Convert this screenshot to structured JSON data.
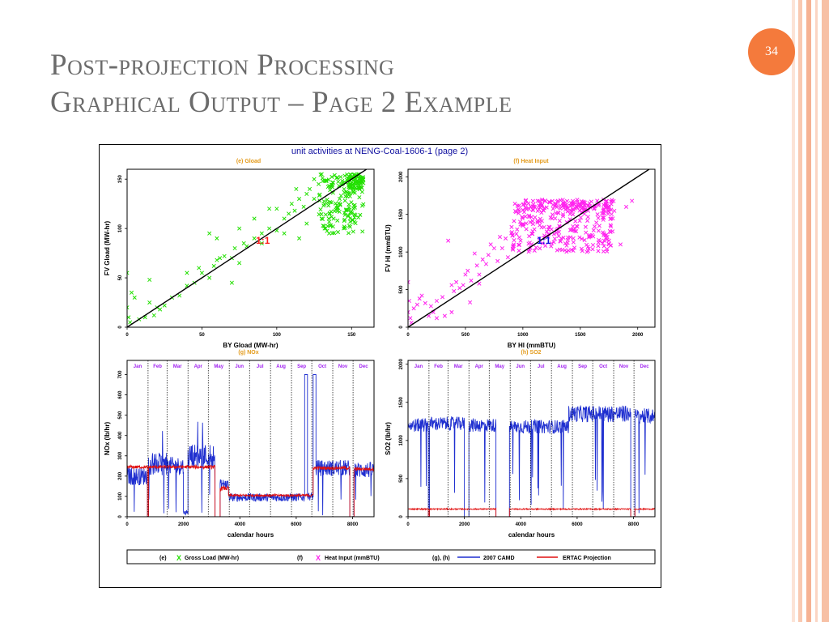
{
  "slide": {
    "title_line1": "Post-projection Processing",
    "title_line2": "Graphical Output – Page 2 Example",
    "page_number": "34",
    "colors": {
      "title": "#6b6b6b",
      "badge": "#f47a3c",
      "stripe_light": "#fbd9c9",
      "stripe_mid": "#f6b89a"
    }
  },
  "figure": {
    "main_title": "unit activities at  NENG-Coal-1606-1  (page 2)",
    "subtitle_color": "#e39a1a",
    "legend": {
      "e_tag": "(e)",
      "e_marker": "X",
      "e_label": "Gross Load (MW-hr)",
      "f_tag": "(f)",
      "f_marker": "X",
      "f_label": "Heat Input (mmBTU)",
      "gh_tag": "(g), (h)",
      "camd_label": "2007 CAMD",
      "ertac_label": "ERTAC Projection",
      "colors": {
        "gload": "#22e000",
        "heat": "#ff22ee",
        "camd": "#1f2fd0",
        "ertac": "#e01010"
      }
    }
  },
  "chart_data": [
    {
      "id": "e",
      "type": "scatter",
      "title": "(e) Gload",
      "xlabel": "BY Gload (MW-hr)",
      "ylabel": "FV Gload (MW-hr)",
      "xlim": [
        0,
        165
      ],
      "ylim": [
        0,
        160
      ],
      "xticks": [
        0,
        50,
        100,
        150
      ],
      "yticks": [
        0,
        50,
        100,
        150
      ],
      "annotation": "1:1",
      "annotation_color": "#ff2020",
      "series": [
        {
          "marker_color": "#22e000",
          "points": [
            [
              0,
              55
            ],
            [
              0,
              20
            ],
            [
              1,
              10
            ],
            [
              2,
              5
            ],
            [
              3,
              35
            ],
            [
              5,
              30
            ],
            [
              8,
              8
            ],
            [
              12,
              10
            ],
            [
              15,
              48
            ],
            [
              18,
              12
            ],
            [
              20,
              20
            ],
            [
              25,
              22
            ],
            [
              30,
              30
            ],
            [
              35,
              32
            ],
            [
              40,
              42
            ],
            [
              45,
              45
            ],
            [
              50,
              55
            ],
            [
              55,
              50
            ],
            [
              58,
              62
            ],
            [
              60,
              68
            ],
            [
              62,
              70
            ],
            [
              65,
              72
            ],
            [
              70,
              70
            ],
            [
              72,
              80
            ],
            [
              75,
              65
            ],
            [
              78,
              85
            ],
            [
              80,
              82
            ],
            [
              85,
              90
            ],
            [
              90,
              95
            ],
            [
              95,
              100
            ],
            [
              100,
              98
            ],
            [
              105,
              110
            ],
            [
              108,
              115
            ],
            [
              110,
              125
            ],
            [
              112,
              118
            ],
            [
              115,
              130
            ],
            [
              118,
              122
            ],
            [
              120,
              105
            ],
            [
              122,
              140
            ],
            [
              125,
              150
            ],
            [
              128,
              145
            ],
            [
              130,
              155
            ],
            [
              132,
              100
            ],
            [
              135,
              95
            ],
            [
              138,
              110
            ],
            [
              140,
              120
            ],
            [
              142,
              130
            ],
            [
              145,
              140
            ],
            [
              150,
              150
            ],
            [
              155,
              155
            ],
            [
              60,
              90
            ],
            [
              70,
              45
            ],
            [
              85,
              110
            ],
            [
              105,
              95
            ],
            [
              113,
              140
            ],
            [
              120,
              135
            ],
            [
              130,
              110
            ],
            [
              95,
              120
            ],
            [
              55,
              95
            ],
            [
              75,
              100
            ],
            [
              90,
              85
            ],
            [
              100,
              120
            ],
            [
              115,
              90
            ],
            [
              125,
              130
            ],
            [
              40,
              55
            ],
            [
              48,
              60
            ],
            [
              15,
              25
            ],
            [
              22,
              18
            ]
          ],
          "clusters": [
            {
              "x": [
                128,
                158
              ],
              "y": [
                95,
                155
              ],
              "density": 150
            },
            {
              "x": [
                148,
                158
              ],
              "y": [
                140,
                155
              ],
              "density": 60
            }
          ]
        }
      ],
      "reference_line": "1:1"
    },
    {
      "id": "f",
      "type": "scatter",
      "title": "(f) Heat Input",
      "xlabel": "BY HI (mmBTU)",
      "ylabel": "FV HI (mmBTU)",
      "xlim": [
        0,
        2150
      ],
      "ylim": [
        0,
        2100
      ],
      "xticks": [
        0,
        500,
        1000,
        1500,
        2000
      ],
      "yticks": [
        0,
        500,
        1000,
        1500,
        2000
      ],
      "annotation": "1:1",
      "annotation_color": "#1010e0",
      "series": [
        {
          "marker_color": "#ff22ee",
          "points": [
            [
              0,
              600
            ],
            [
              0,
              200
            ],
            [
              10,
              350
            ],
            [
              20,
              120
            ],
            [
              30,
              60
            ],
            [
              50,
              250
            ],
            [
              80,
              300
            ],
            [
              100,
              380
            ],
            [
              120,
              420
            ],
            [
              150,
              320
            ],
            [
              180,
              150
            ],
            [
              200,
              280
            ],
            [
              220,
              200
            ],
            [
              250,
              350
            ],
            [
              300,
              400
            ],
            [
              320,
              150
            ],
            [
              350,
              1150
            ],
            [
              380,
              560
            ],
            [
              400,
              480
            ],
            [
              420,
              600
            ],
            [
              450,
              520
            ],
            [
              480,
              560
            ],
            [
              500,
              700
            ],
            [
              520,
              750
            ],
            [
              550,
              620
            ],
            [
              580,
              980
            ],
            [
              600,
              820
            ],
            [
              620,
              700
            ],
            [
              650,
              900
            ],
            [
              680,
              840
            ],
            [
              700,
              960
            ],
            [
              720,
              1100
            ],
            [
              750,
              1050
            ],
            [
              780,
              880
            ],
            [
              800,
              1200
            ],
            [
              820,
              1050
            ],
            [
              850,
              1180
            ],
            [
              870,
              930
            ],
            [
              900,
              1250
            ],
            [
              920,
              1100
            ],
            [
              950,
              1300
            ],
            [
              980,
              1150
            ],
            [
              1000,
              1350
            ],
            [
              1850,
              1100
            ],
            [
              1950,
              1680
            ],
            [
              1900,
              1600
            ],
            [
              1700,
              1550
            ],
            [
              1650,
              1500
            ],
            [
              540,
              330
            ],
            [
              250,
              120
            ],
            [
              380,
              200
            ],
            [
              620,
              580
            ]
          ],
          "clusters": [
            {
              "x": [
                900,
                1800
              ],
              "y": [
                1000,
                1700
              ],
              "density": 260
            },
            {
              "x": [
                1000,
                1800
              ],
              "y": [
                1550,
                1700
              ],
              "density": 90
            }
          ]
        }
      ],
      "reference_line": "1:1"
    },
    {
      "id": "g",
      "type": "line",
      "title": "(g) NOx",
      "xlabel": "calendar hours",
      "ylabel": "NOx (lb/hr)",
      "xlim": [
        0,
        8760
      ],
      "ylim": [
        0,
        770
      ],
      "xticks": [
        0,
        2000,
        4000,
        6000,
        8000
      ],
      "yticks": [
        0,
        100,
        200,
        300,
        400,
        500,
        600,
        700
      ],
      "months": [
        "Jan",
        "Feb",
        "Mar",
        "Apr",
        "May",
        "Jun",
        "Jul",
        "Aug",
        "Sep",
        "Oct",
        "Nov",
        "Dec"
      ],
      "month_color": "#a020f0",
      "series": [
        {
          "name": "2007 CAMD",
          "color": "#1f2fd0",
          "segments": [
            {
              "x": [
                0,
                720
              ],
              "mean": 200,
              "noise": 45
            },
            {
              "x": [
                720,
                760
              ],
              "mean": 0,
              "noise": 0
            },
            {
              "x": [
                760,
                1400
              ],
              "mean": 260,
              "noise": 55,
              "spike": 480
            },
            {
              "x": [
                1400,
                2000
              ],
              "mean": 250,
              "noise": 45
            },
            {
              "x": [
                2000,
                2160
              ],
              "mean": 20,
              "noise": 10
            },
            {
              "x": [
                2160,
                3120
              ],
              "mean": 300,
              "noise": 60,
              "spike": 480
            },
            {
              "x": [
                3120,
                3300
              ],
              "mean": 0,
              "noise": 0
            },
            {
              "x": [
                3300,
                3600
              ],
              "mean": 160,
              "noise": 25
            },
            {
              "x": [
                3600,
                6300
              ],
              "mean": 95,
              "noise": 20
            },
            {
              "x": [
                6300,
                6400
              ],
              "mean": 700,
              "noise": 0
            },
            {
              "x": [
                6400,
                6600
              ],
              "mean": 100,
              "noise": 20
            },
            {
              "x": [
                6600,
                6700
              ],
              "mean": 700,
              "noise": 0
            },
            {
              "x": [
                6700,
                7900
              ],
              "mean": 240,
              "noise": 40
            },
            {
              "x": [
                7900,
                8050
              ],
              "mean": 0,
              "noise": 0
            },
            {
              "x": [
                8050,
                8760
              ],
              "mean": 230,
              "noise": 40
            }
          ]
        },
        {
          "name": "ERTAC Projection",
          "color": "#e01010",
          "segments": [
            {
              "x": [
                0,
                720
              ],
              "mean": 245,
              "noise": 8
            },
            {
              "x": [
                720,
                760
              ],
              "mean": 0,
              "noise": 0
            },
            {
              "x": [
                760,
                3120
              ],
              "mean": 245,
              "noise": 8
            },
            {
              "x": [
                3120,
                3300
              ],
              "mean": 0,
              "noise": 0
            },
            {
              "x": [
                3300,
                3600
              ],
              "mean": 140,
              "noise": 10
            },
            {
              "x": [
                3600,
                6600
              ],
              "mean": 105,
              "noise": 6
            },
            {
              "x": [
                6600,
                7900
              ],
              "mean": 240,
              "noise": 8
            },
            {
              "x": [
                7900,
                8050
              ],
              "mean": 0,
              "noise": 0
            },
            {
              "x": [
                8050,
                8760
              ],
              "mean": 235,
              "noise": 8
            }
          ]
        }
      ]
    },
    {
      "id": "h",
      "type": "line",
      "title": "(h) SO2",
      "xlabel": "calendar hours",
      "ylabel": "SO2 (lb/hr)",
      "xlim": [
        0,
        8760
      ],
      "ylim": [
        0,
        2050
      ],
      "xticks": [
        0,
        2000,
        4000,
        6000,
        8000
      ],
      "yticks": [
        0,
        500,
        1000,
        1500,
        2000
      ],
      "months": [
        "Jan",
        "Feb",
        "Mar",
        "Apr",
        "May",
        "Jun",
        "Jul",
        "Aug",
        "Sep",
        "Oct",
        "Nov",
        "Dec"
      ],
      "month_color": "#a020f0",
      "series": [
        {
          "name": "2007 CAMD",
          "color": "#1f2fd0",
          "segments": [
            {
              "x": [
                0,
                720
              ],
              "mean": 1200,
              "noise": 90
            },
            {
              "x": [
                720,
                760
              ],
              "mean": 0,
              "noise": 0
            },
            {
              "x": [
                760,
                2000
              ],
              "mean": 1220,
              "noise": 90
            },
            {
              "x": [
                2000,
                2160
              ],
              "mean": 0,
              "noise": 0
            },
            {
              "x": [
                2160,
                3120
              ],
              "mean": 1200,
              "noise": 90
            },
            {
              "x": [
                3120,
                3300
              ],
              "mean": 0,
              "noise": 0
            },
            {
              "x": [
                3300,
                3600
              ],
              "mean": 0,
              "noise": 0
            },
            {
              "x": [
                3600,
                5700
              ],
              "mean": 1180,
              "noise": 90
            },
            {
              "x": [
                5700,
                7900
              ],
              "mean": 1350,
              "noise": 110
            },
            {
              "x": [
                7900,
                8050
              ],
              "mean": 0,
              "noise": 0
            },
            {
              "x": [
                8050,
                8760
              ],
              "mean": 1320,
              "noise": 100
            }
          ]
        },
        {
          "name": "ERTAC Projection",
          "color": "#e01010",
          "segments": [
            {
              "x": [
                0,
                720
              ],
              "mean": 100,
              "noise": 8
            },
            {
              "x": [
                720,
                760
              ],
              "mean": 0,
              "noise": 0
            },
            {
              "x": [
                760,
                3120
              ],
              "mean": 100,
              "noise": 8
            },
            {
              "x": [
                3120,
                3600
              ],
              "mean": 0,
              "noise": 0
            },
            {
              "x": [
                3600,
                7900
              ],
              "mean": 100,
              "noise": 8
            },
            {
              "x": [
                7900,
                8050
              ],
              "mean": 0,
              "noise": 0
            },
            {
              "x": [
                8050,
                8760
              ],
              "mean": 100,
              "noise": 8
            }
          ]
        }
      ]
    }
  ]
}
